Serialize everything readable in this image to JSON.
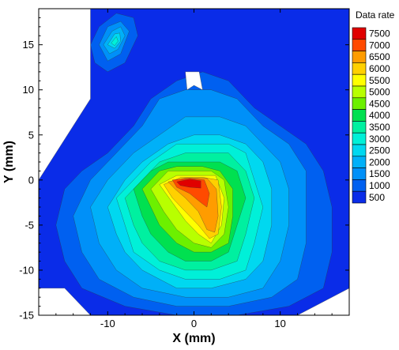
{
  "chart_data": {
    "type": "heatmap",
    "subtype": "filled-contour",
    "title": "",
    "xlabel": "X (mm)",
    "ylabel": "Y (mm)",
    "xlim": [
      -18,
      18
    ],
    "ylim": [
      -15,
      19
    ],
    "x_ticks": [
      -10,
      0,
      10
    ],
    "y_ticks": [
      -15,
      -10,
      -5,
      0,
      5,
      10,
      15
    ],
    "legend": {
      "title": "Data rate",
      "placement": "right",
      "levels": [
        7500,
        7000,
        6500,
        6000,
        5500,
        5000,
        4500,
        4000,
        3500,
        3000,
        2500,
        2000,
        1500,
        1000,
        500
      ],
      "level_colors": [
        "#e00000",
        "#ff4a00",
        "#ff9c00",
        "#ffd000",
        "#ffff00",
        "#b8ff00",
        "#6cf000",
        "#00e050",
        "#00f0a0",
        "#00f0d8",
        "#00d8f0",
        "#00b0f8",
        "#0090f8",
        "#0060f0",
        "#0a2ce8"
      ]
    },
    "background_color": "#0a2ce8",
    "contours": [
      {
        "level": 1000,
        "color": "#0060f0",
        "polygon": [
          [
            -16,
            -5
          ],
          [
            -15,
            -1
          ],
          [
            -13,
            1
          ],
          [
            -10,
            3
          ],
          [
            -7,
            6
          ],
          [
            -5,
            9
          ],
          [
            -2,
            11
          ],
          [
            1,
            12
          ],
          [
            4,
            11
          ],
          [
            7,
            8
          ],
          [
            10,
            6
          ],
          [
            13,
            4
          ],
          [
            15,
            1
          ],
          [
            16,
            -3
          ],
          [
            16,
            -8
          ],
          [
            15,
            -12
          ],
          [
            11,
            -14
          ],
          [
            5,
            -15
          ],
          [
            -2,
            -15
          ],
          [
            -8,
            -14
          ],
          [
            -13,
            -12
          ],
          [
            -15,
            -9
          ]
        ]
      },
      {
        "level": 1500,
        "color": "#0090f8",
        "polygon": [
          [
            -14,
            -4
          ],
          [
            -12,
            0
          ],
          [
            -9,
            3
          ],
          [
            -6,
            6
          ],
          [
            -4,
            9
          ],
          [
            -1,
            10
          ],
          [
            2,
            10
          ],
          [
            5,
            9
          ],
          [
            8,
            6
          ],
          [
            11,
            4
          ],
          [
            13,
            1
          ],
          [
            13,
            -3
          ],
          [
            13,
            -7
          ],
          [
            12,
            -11
          ],
          [
            9,
            -13
          ],
          [
            4,
            -14
          ],
          [
            -2,
            -14
          ],
          [
            -7,
            -13
          ],
          [
            -11,
            -11
          ],
          [
            -13,
            -8
          ]
        ]
      },
      {
        "level": 2000,
        "color": "#00b0f8",
        "polygon": [
          [
            -12,
            -3
          ],
          [
            -10,
            0
          ],
          [
            -7,
            3
          ],
          [
            -4,
            5
          ],
          [
            -1,
            7
          ],
          [
            3,
            7
          ],
          [
            6,
            6
          ],
          [
            8,
            4
          ],
          [
            10,
            2
          ],
          [
            11,
            -1
          ],
          [
            11,
            -5
          ],
          [
            10,
            -9
          ],
          [
            8,
            -12
          ],
          [
            4,
            -13
          ],
          [
            -1,
            -13
          ],
          [
            -6,
            -12
          ],
          [
            -9,
            -10
          ],
          [
            -11,
            -7
          ]
        ]
      },
      {
        "level": 2500,
        "color": "#00d8f0",
        "polygon": [
          [
            -10,
            -3
          ],
          [
            -8,
            0
          ],
          [
            -6,
            2
          ],
          [
            -3,
            4
          ],
          [
            0,
            5
          ],
          [
            3,
            5
          ],
          [
            6,
            4
          ],
          [
            8,
            2
          ],
          [
            9,
            -1
          ],
          [
            9,
            -5
          ],
          [
            8,
            -9
          ],
          [
            6,
            -11
          ],
          [
            2,
            -12
          ],
          [
            -2,
            -12
          ],
          [
            -6,
            -10
          ],
          [
            -8,
            -8
          ],
          [
            -9,
            -6
          ]
        ]
      },
      {
        "level": 3000,
        "color": "#00f0d8",
        "polygon": [
          [
            -9,
            -2
          ],
          [
            -7,
            0
          ],
          [
            -5,
            2
          ],
          [
            -2,
            4
          ],
          [
            1,
            4
          ],
          [
            4,
            4
          ],
          [
            6,
            3
          ],
          [
            7,
            0
          ],
          [
            8,
            -3
          ],
          [
            7,
            -7
          ],
          [
            6,
            -10
          ],
          [
            3,
            -11
          ],
          [
            -1,
            -11
          ],
          [
            -4,
            -10
          ],
          [
            -7,
            -8
          ],
          [
            -8,
            -5
          ]
        ]
      },
      {
        "level": 3500,
        "color": "#00f0a0",
        "polygon": [
          [
            -8,
            -2
          ],
          [
            -6,
            0
          ],
          [
            -4,
            2
          ],
          [
            -1,
            3
          ],
          [
            2,
            3
          ],
          [
            4,
            3
          ],
          [
            6,
            1
          ],
          [
            7,
            -2
          ],
          [
            6,
            -6
          ],
          [
            5,
            -9
          ],
          [
            2,
            -10
          ],
          [
            -1,
            -10
          ],
          [
            -4,
            -9
          ],
          [
            -6,
            -7
          ],
          [
            -7,
            -5
          ]
        ]
      },
      {
        "level": 4000,
        "color": "#00e050",
        "polygon": [
          [
            -7,
            -1
          ],
          [
            -5,
            1
          ],
          [
            -3,
            2
          ],
          [
            0,
            2
          ],
          [
            3,
            2
          ],
          [
            5,
            1
          ],
          [
            6,
            -2
          ],
          [
            5,
            -5
          ],
          [
            4,
            -8
          ],
          [
            2,
            -9
          ],
          [
            -1,
            -9
          ],
          [
            -3,
            -8
          ],
          [
            -5,
            -6
          ],
          [
            -6,
            -4
          ]
        ]
      },
      {
        "level": 4500,
        "color": "#6cf000",
        "polygon": [
          [
            -6,
            -1
          ],
          [
            -4,
            1
          ],
          [
            -2,
            1.5
          ],
          [
            1,
            1.5
          ],
          [
            3,
            1
          ],
          [
            4.5,
            -1
          ],
          [
            4.5,
            -4
          ],
          [
            4,
            -7
          ],
          [
            2,
            -8
          ],
          [
            0,
            -8
          ],
          [
            -2,
            -7
          ],
          [
            -4,
            -5
          ],
          [
            -5,
            -3
          ]
        ]
      },
      {
        "level": 5000,
        "color": "#b8ff00",
        "polygon": [
          [
            -5,
            -1
          ],
          [
            -3,
            1
          ],
          [
            -1,
            1
          ],
          [
            2,
            1
          ],
          [
            3.5,
            0
          ],
          [
            4,
            -3
          ],
          [
            3.5,
            -6
          ],
          [
            2,
            -7.5
          ],
          [
            0,
            -7
          ],
          [
            -2,
            -5.5
          ],
          [
            -3.5,
            -3.5
          ]
        ]
      },
      {
        "level": 5500,
        "color": "#ffff00",
        "polygon": [
          [
            -4,
            -0.5
          ],
          [
            -2,
            0.5
          ],
          [
            0,
            0.5
          ],
          [
            2.5,
            0.5
          ],
          [
            3.5,
            -2
          ],
          [
            3.2,
            -5
          ],
          [
            2,
            -7
          ],
          [
            0.5,
            -6
          ],
          [
            -1,
            -4.5
          ],
          [
            -2.5,
            -2.5
          ]
        ]
      },
      {
        "level": 6000,
        "color": "#ffd000",
        "polygon": [
          [
            -3.5,
            -0.5
          ],
          [
            -1.5,
            0.3
          ],
          [
            1,
            0.3
          ],
          [
            2.8,
            0
          ],
          [
            3.2,
            -3
          ],
          [
            2.8,
            -6
          ],
          [
            1.8,
            -6.5
          ],
          [
            0.5,
            -5
          ],
          [
            -1,
            -3.5
          ],
          [
            -2.5,
            -2
          ]
        ]
      },
      {
        "level": 6500,
        "color": "#ff9c00",
        "polygon": [
          [
            -3,
            -0.2
          ],
          [
            -1,
            0.2
          ],
          [
            1.5,
            0.2
          ],
          [
            2.6,
            -1
          ],
          [
            2.8,
            -4
          ],
          [
            2.4,
            -5.8
          ],
          [
            1.5,
            -5.5
          ],
          [
            0.5,
            -3.5
          ],
          [
            -1,
            -2
          ],
          [
            -2.2,
            -1
          ]
        ]
      },
      {
        "level": 7000,
        "color": "#ff4a00",
        "polygon": [
          [
            -2.5,
            0
          ],
          [
            -0.5,
            0.2
          ],
          [
            1.2,
            0
          ],
          [
            1.8,
            -1.5
          ],
          [
            1.5,
            -3
          ],
          [
            0.8,
            -2.5
          ],
          [
            -0.5,
            -1.5
          ],
          [
            -2,
            -0.8
          ]
        ]
      },
      {
        "level": 7500,
        "color": "#e00000",
        "polygon": [
          [
            -2,
            -0.2
          ],
          [
            -0.5,
            0.1
          ],
          [
            0.8,
            -0.1
          ],
          [
            0.8,
            -0.9
          ],
          [
            -0.5,
            -0.8
          ],
          [
            -1.6,
            -0.6
          ]
        ]
      },
      {
        "level": 1000,
        "color": "#0060f0",
        "polygon": [
          [
            -12,
            15
          ],
          [
            -11,
            17
          ],
          [
            -9,
            18.5
          ],
          [
            -7,
            18
          ],
          [
            -6.5,
            16
          ],
          [
            -8,
            13
          ],
          [
            -10,
            12
          ],
          [
            -11.5,
            13
          ]
        ]
      },
      {
        "level": 1500,
        "color": "#0090f8",
        "polygon": [
          [
            -11,
            15
          ],
          [
            -10,
            17
          ],
          [
            -8.5,
            17.6
          ],
          [
            -7.5,
            16.5
          ],
          [
            -8.5,
            14
          ],
          [
            -10,
            13.2
          ]
        ]
      },
      {
        "level": 2000,
        "color": "#00b0f8",
        "polygon": [
          [
            -10.5,
            15
          ],
          [
            -9.5,
            16.5
          ],
          [
            -8.5,
            17
          ],
          [
            -8,
            16
          ],
          [
            -8.8,
            14.5
          ],
          [
            -9.8,
            14
          ]
        ]
      },
      {
        "level": 2500,
        "color": "#00d8f0",
        "polygon": [
          [
            -10,
            15
          ],
          [
            -9.2,
            16.2
          ],
          [
            -8.6,
            16.3
          ],
          [
            -8.5,
            15.4
          ],
          [
            -9.2,
            14.6
          ]
        ]
      },
      {
        "level": 3000,
        "color": "#00f0d8",
        "polygon": [
          [
            -9.6,
            15.2
          ],
          [
            -9,
            15.9
          ],
          [
            -8.8,
            15.4
          ],
          [
            -9.2,
            14.9
          ]
        ]
      }
    ],
    "masks": [
      {
        "polygon": [
          [
            -18,
            19
          ],
          [
            -12,
            19
          ],
          [
            -12,
            9
          ],
          [
            -18,
            0
          ]
        ]
      },
      {
        "polygon": [
          [
            -18,
            -12
          ],
          [
            -15,
            -12
          ],
          [
            -12,
            -15
          ],
          [
            -18,
            -15
          ]
        ]
      },
      {
        "polygon": [
          [
            18,
            19
          ],
          [
            18,
            -12
          ],
          [
            12,
            -15
          ],
          [
            18,
            -15
          ]
        ]
      },
      {
        "polygon": [
          [
            -1,
            12
          ],
          [
            -0.8,
            10
          ],
          [
            0,
            10.5
          ],
          [
            1,
            10
          ],
          [
            0.6,
            12
          ]
        ]
      }
    ]
  }
}
